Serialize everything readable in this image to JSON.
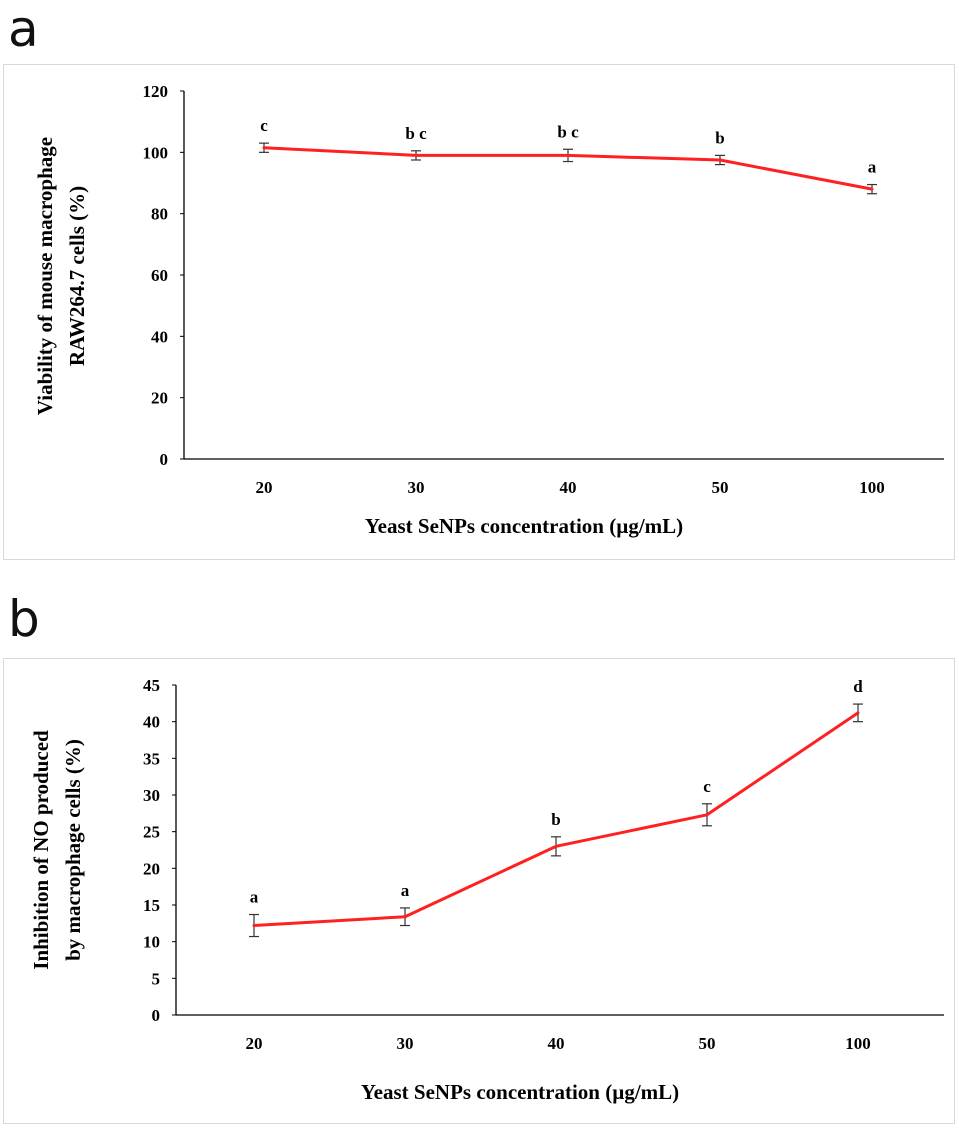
{
  "panels": [
    {
      "letter": "a"
    },
    {
      "letter": "b"
    }
  ],
  "chart_data": [
    {
      "type": "line",
      "categories": [
        "20",
        "30",
        "40",
        "50",
        "100"
      ],
      "series": [
        {
          "values": [
            101.5,
            99.0,
            99.0,
            97.5,
            88.0
          ],
          "errors": [
            1.5,
            1.5,
            2.0,
            1.5,
            1.5
          ],
          "color": "#ff2020"
        }
      ],
      "annotations": [
        "c",
        "b c",
        "b c",
        "b",
        "a"
      ],
      "xlabel": "Yeast SeNPs concentration  (µg/mL)",
      "ylabel_lines": [
        "Viability  of mouse macrophage",
        "RAW264.7 cells  (%)"
      ],
      "ylim": [
        0,
        120
      ],
      "yticks": [
        0,
        20,
        40,
        60,
        80,
        100,
        120
      ],
      "grid": false
    },
    {
      "type": "line",
      "categories": [
        "20",
        "30",
        "40",
        "50",
        "100"
      ],
      "series": [
        {
          "values": [
            12.2,
            13.4,
            23.0,
            27.3,
            41.2
          ],
          "errors": [
            1.5,
            1.2,
            1.3,
            1.5,
            1.2
          ],
          "color": "#ff2020"
        }
      ],
      "annotations": [
        "a",
        "a",
        "b",
        "c",
        "d"
      ],
      "xlabel": "Yeast SeNPs concentration  (µg/mL)",
      "ylabel_lines": [
        "Inhibition  of NO produced",
        "by macrophage  cells (%)"
      ],
      "ylim": [
        0,
        45
      ],
      "yticks": [
        0,
        5,
        10,
        15,
        20,
        25,
        30,
        35,
        40,
        45
      ],
      "grid": false
    }
  ]
}
